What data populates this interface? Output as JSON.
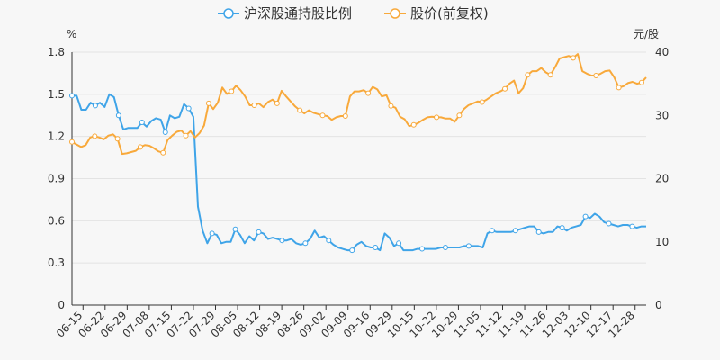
{
  "chart_data": {
    "type": "line",
    "left_axis_unit": "%",
    "right_axis_unit": "元/股",
    "left_ylim": [
      0,
      1.8
    ],
    "left_ticks": [
      "0",
      "0.3",
      "0.6",
      "0.9",
      "1.2",
      "1.5",
      "1.8"
    ],
    "right_ylim": [
      0,
      40
    ],
    "right_ticks": [
      "0",
      "10",
      "20",
      "30",
      "40"
    ],
    "x_tick_labels": [
      "06-15",
      "06-22",
      "06-29",
      "07-08",
      "07-15",
      "07-22",
      "07-29",
      "08-05",
      "08-12",
      "08-19",
      "08-26",
      "09-02",
      "09-09",
      "09-16",
      "09-29",
      "10-15",
      "10-22",
      "10-29",
      "11-05",
      "11-12",
      "11-19",
      "11-26",
      "12-03",
      "12-10",
      "12-17",
      "12-28"
    ],
    "legend_position": "top",
    "grid": "horizontal",
    "series": [
      {
        "name": "沪深股通持股比例",
        "axis": "left",
        "color": "#3fa4e8",
        "values": [
          1.49,
          1.49,
          1.39,
          1.39,
          1.44,
          1.42,
          1.44,
          1.41,
          1.5,
          1.48,
          1.35,
          1.25,
          1.26,
          1.26,
          1.26,
          1.3,
          1.27,
          1.31,
          1.33,
          1.32,
          1.23,
          1.35,
          1.33,
          1.34,
          1.43,
          1.4,
          1.34,
          0.7,
          0.53,
          0.44,
          0.51,
          0.5,
          0.44,
          0.45,
          0.45,
          0.54,
          0.5,
          0.44,
          0.49,
          0.46,
          0.52,
          0.51,
          0.47,
          0.48,
          0.47,
          0.46,
          0.46,
          0.47,
          0.44,
          0.43,
          0.44,
          0.47,
          0.53,
          0.48,
          0.49,
          0.46,
          0.43,
          0.41,
          0.4,
          0.39,
          0.39,
          0.43,
          0.45,
          0.42,
          0.41,
          0.41,
          0.39,
          0.51,
          0.48,
          0.42,
          0.44,
          0.39,
          0.39,
          0.39,
          0.4,
          0.4,
          0.4,
          0.4,
          0.4,
          0.41,
          0.41,
          0.41,
          0.41,
          0.41,
          0.42,
          0.42,
          0.42,
          0.42,
          0.41,
          0.51,
          0.53,
          0.52,
          0.52,
          0.52,
          0.52,
          0.53,
          0.54,
          0.55,
          0.56,
          0.56,
          0.52,
          0.51,
          0.52,
          0.52,
          0.56,
          0.55,
          0.53,
          0.55,
          0.56,
          0.57,
          0.63,
          0.62,
          0.65,
          0.63,
          0.59,
          0.58,
          0.57,
          0.56,
          0.57,
          0.57,
          0.56,
          0.55,
          0.56,
          0.56
        ]
      },
      {
        "name": "股价(前复权)",
        "axis": "right",
        "color": "#f8a93b",
        "values": [
          25.8,
          25.4,
          25.0,
          25.3,
          26.5,
          26.7,
          26.5,
          26.2,
          26.8,
          27.0,
          26.3,
          23.9,
          24.0,
          24.2,
          24.4,
          25.0,
          25.3,
          25.2,
          24.8,
          24.3,
          24.1,
          26.1,
          26.8,
          27.4,
          27.6,
          26.8,
          27.5,
          26.5,
          27.2,
          28.4,
          31.9,
          31.0,
          32.0,
          34.4,
          33.4,
          33.8,
          34.7,
          34.0,
          33.0,
          31.6,
          31.6,
          31.9,
          31.3,
          32.1,
          32.5,
          31.9,
          33.9,
          33.0,
          32.2,
          31.4,
          30.8,
          30.3,
          30.8,
          30.4,
          30.2,
          30.0,
          29.9,
          29.3,
          29.7,
          29.9,
          29.9,
          33.0,
          33.8,
          33.8,
          34.0,
          33.5,
          34.5,
          34.1,
          33.0,
          33.2,
          31.5,
          31.2,
          29.8,
          29.4,
          28.3,
          28.5,
          28.8,
          29.3,
          29.7,
          29.8,
          29.7,
          29.7,
          29.5,
          29.5,
          29.0,
          30.0,
          31.0,
          31.6,
          31.9,
          32.2,
          32.1,
          32.5,
          33.0,
          33.5,
          33.8,
          34.2,
          35.0,
          35.5,
          33.5,
          34.3,
          36.4,
          37.0,
          37.0,
          37.5,
          36.8,
          36.4,
          37.6,
          39.0,
          39.2,
          39.4,
          39.1,
          39.7,
          37.0,
          36.6,
          36.3,
          36.3,
          36.6,
          37.0,
          37.1,
          36.0,
          34.4,
          34.6,
          35.1,
          35.3,
          35.0,
          35.2,
          36.0
        ]
      }
    ]
  }
}
